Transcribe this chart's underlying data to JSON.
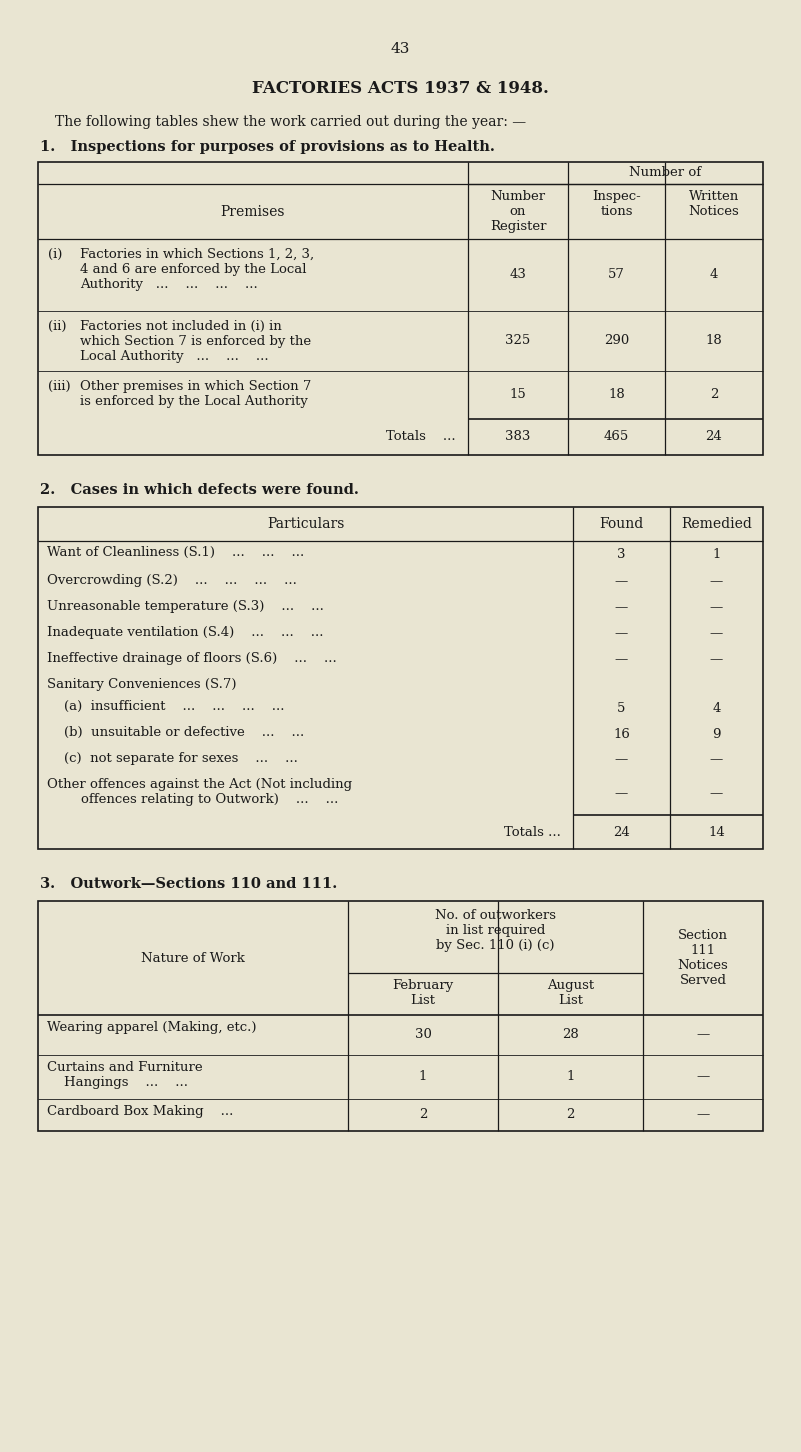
{
  "bg_color": "#e9e5d2",
  "text_color": "#1a1a1a",
  "page_number": "43",
  "main_title": "FACTORIES ACTS 1937 & 1948.",
  "intro_text": "The following tables shew the work carried out during the year: —",
  "section1_heading": "1.   Inspections for purposes of provisions as to Health.",
  "section2_heading": "2.   Cases in which defects were found.",
  "section3_heading": "3.   Outwork—Sections 110 and 111."
}
